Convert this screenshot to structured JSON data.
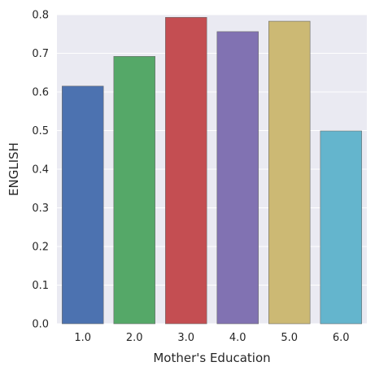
{
  "chart_data": {
    "type": "bar",
    "categories": [
      "1.0",
      "2.0",
      "3.0",
      "4.0",
      "5.0",
      "6.0"
    ],
    "values": [
      0.615,
      0.692,
      0.793,
      0.756,
      0.783,
      0.499
    ],
    "xlabel": "Mother's Education",
    "ylabel": "ENGLISH",
    "ylim": [
      0,
      0.8
    ],
    "yticks": [
      "0.0",
      "0.1",
      "0.2",
      "0.3",
      "0.4",
      "0.5",
      "0.6",
      "0.7",
      "0.8"
    ],
    "grid": true,
    "colors": [
      "#4c72b0",
      "#55a868",
      "#c44e52",
      "#8172b2",
      "#ccb974",
      "#64b5cd"
    ],
    "plot_background": "#eaeaf2",
    "grid_color": "#ffffff"
  }
}
